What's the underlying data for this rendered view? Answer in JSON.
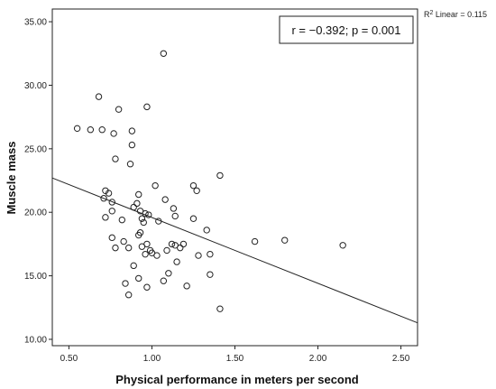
{
  "chart_data": {
    "type": "scatter",
    "xlabel": "Physical performance in meters per second",
    "ylabel": "Muscle mass",
    "xlim": [
      0.4,
      2.6
    ],
    "ylim": [
      9.5,
      36.0
    ],
    "xticks": [
      "0.50",
      "1.00",
      "1.50",
      "2.00",
      "2.50"
    ],
    "yticks": [
      "10.00",
      "15.00",
      "20.00",
      "25.00",
      "30.00",
      "35.00"
    ],
    "r2_label": "R",
    "r2_sup": "2",
    "r2_value": " Linear = 0.115",
    "annotation": "r = −0.392; p = 0.001",
    "fit_line": {
      "x": [
        0.4,
        2.6
      ],
      "y": [
        22.7,
        11.3
      ]
    },
    "grid": false,
    "points": [
      {
        "x": 0.55,
        "y": 26.6
      },
      {
        "x": 0.63,
        "y": 26.5
      },
      {
        "x": 0.68,
        "y": 29.1
      },
      {
        "x": 0.7,
        "y": 26.5
      },
      {
        "x": 0.77,
        "y": 26.2
      },
      {
        "x": 0.8,
        "y": 28.1
      },
      {
        "x": 0.88,
        "y": 26.4
      },
      {
        "x": 0.88,
        "y": 25.3
      },
      {
        "x": 0.97,
        "y": 28.3
      },
      {
        "x": 1.07,
        "y": 32.5
      },
      {
        "x": 0.78,
        "y": 24.2
      },
      {
        "x": 0.87,
        "y": 23.8
      },
      {
        "x": 0.71,
        "y": 21.1
      },
      {
        "x": 0.72,
        "y": 21.7
      },
      {
        "x": 0.74,
        "y": 21.5
      },
      {
        "x": 0.76,
        "y": 20.8
      },
      {
        "x": 0.72,
        "y": 19.6
      },
      {
        "x": 0.76,
        "y": 20.1
      },
      {
        "x": 0.82,
        "y": 19.4
      },
      {
        "x": 0.89,
        "y": 20.4
      },
      {
        "x": 0.91,
        "y": 20.7
      },
      {
        "x": 0.92,
        "y": 21.4
      },
      {
        "x": 0.93,
        "y": 20.1
      },
      {
        "x": 0.94,
        "y": 19.5
      },
      {
        "x": 0.95,
        "y": 19.2
      },
      {
        "x": 0.96,
        "y": 19.9
      },
      {
        "x": 0.98,
        "y": 19.8
      },
      {
        "x": 1.02,
        "y": 22.1
      },
      {
        "x": 1.08,
        "y": 21.0
      },
      {
        "x": 1.13,
        "y": 20.3
      },
      {
        "x": 1.14,
        "y": 19.7
      },
      {
        "x": 1.04,
        "y": 19.3
      },
      {
        "x": 1.25,
        "y": 22.1
      },
      {
        "x": 1.27,
        "y": 21.7
      },
      {
        "x": 1.25,
        "y": 19.5
      },
      {
        "x": 1.41,
        "y": 22.9
      },
      {
        "x": 1.33,
        "y": 18.6
      },
      {
        "x": 0.76,
        "y": 18.0
      },
      {
        "x": 0.83,
        "y": 17.7
      },
      {
        "x": 0.86,
        "y": 17.2
      },
      {
        "x": 0.78,
        "y": 17.2
      },
      {
        "x": 0.92,
        "y": 18.2
      },
      {
        "x": 0.93,
        "y": 18.4
      },
      {
        "x": 0.94,
        "y": 17.3
      },
      {
        "x": 0.97,
        "y": 17.5
      },
      {
        "x": 0.99,
        "y": 17.0
      },
      {
        "x": 1.0,
        "y": 16.8
      },
      {
        "x": 1.03,
        "y": 16.6
      },
      {
        "x": 0.96,
        "y": 16.7
      },
      {
        "x": 1.09,
        "y": 17.0
      },
      {
        "x": 1.12,
        "y": 17.5
      },
      {
        "x": 1.14,
        "y": 17.4
      },
      {
        "x": 1.17,
        "y": 17.2
      },
      {
        "x": 1.19,
        "y": 17.5
      },
      {
        "x": 1.15,
        "y": 16.1
      },
      {
        "x": 1.28,
        "y": 16.6
      },
      {
        "x": 1.35,
        "y": 16.7
      },
      {
        "x": 0.89,
        "y": 15.8
      },
      {
        "x": 0.92,
        "y": 14.8
      },
      {
        "x": 0.84,
        "y": 14.4
      },
      {
        "x": 0.86,
        "y": 13.5
      },
      {
        "x": 0.97,
        "y": 14.1
      },
      {
        "x": 1.07,
        "y": 14.6
      },
      {
        "x": 1.1,
        "y": 15.2
      },
      {
        "x": 1.21,
        "y": 14.2
      },
      {
        "x": 1.35,
        "y": 15.1
      },
      {
        "x": 1.41,
        "y": 12.4
      },
      {
        "x": 1.62,
        "y": 17.7
      },
      {
        "x": 1.8,
        "y": 17.8
      },
      {
        "x": 2.15,
        "y": 17.4
      }
    ]
  }
}
